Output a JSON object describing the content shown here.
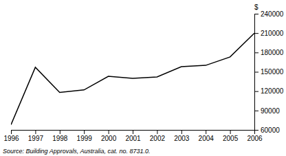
{
  "chart_data": {
    "type": "line",
    "x": [
      1996,
      1997,
      1998,
      1999,
      2000,
      2001,
      2002,
      2003,
      2004,
      2005,
      2006
    ],
    "values": [
      68000,
      157000,
      118000,
      122000,
      143000,
      140000,
      142000,
      158000,
      160000,
      173000,
      210000
    ],
    "color": "#000000",
    "xlim": [
      1996,
      2006
    ],
    "xticks": [
      1996,
      1997,
      1998,
      1999,
      2000,
      2001,
      2002,
      2003,
      2004,
      2005,
      2006
    ],
    "ylim": [
      60000,
      240000
    ],
    "yticks": [
      60000,
      90000,
      120000,
      150000,
      180000,
      210000,
      240000
    ],
    "ylabel": "$",
    "annotations": [
      "Source:  Building Approvals,  Australia,  cat.  no.  8731.0."
    ],
    "grid": false
  }
}
